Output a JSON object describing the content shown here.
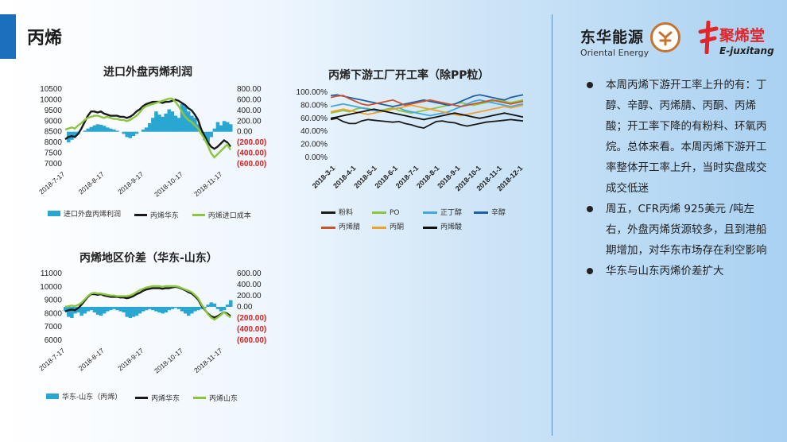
{
  "page": {
    "title": "丙烯"
  },
  "logos": {
    "oriental_cn": "东华能源",
    "oriental_en": "Oriental Energy",
    "juxitang_cn": "聚烯堂",
    "juxitang_en": "E-juxitang"
  },
  "bullets": [
    "本周丙烯下游开工率上升的有：丁醇、辛醇、丙烯腈、丙酮、丙烯酸；开工率下降的有粉料、环氧丙烷。总体来看。本周丙烯下游开工率整体开工率上升，当时实盘成交成交低迷",
    "周五，CFR丙烯 925美元 /吨左右，外盘丙烯货源较多，且到港船期增加，对华东市场存在利空影响",
    "华东与山东丙烯价差扩大"
  ],
  "colors": {
    "accent": "#1c6fbd",
    "area": "#2aa6d3",
    "black": "#1a1a1a",
    "green": "#8cc63f",
    "neg": "#e01b1b"
  },
  "chart_data": [
    {
      "type": "line",
      "title": "进口外盘丙烯利润",
      "x_ticks": [
        "2018-7-17",
        "2018-8-17",
        "2018-9-17",
        "2018-10-17",
        "2018-11-17"
      ],
      "y_left_ticks": [
        "10500",
        "10000",
        "9500",
        "9000",
        "8500",
        "8000",
        "7500",
        "7000"
      ],
      "y_left_range": [
        7000,
        10500
      ],
      "y_right_ticks": [
        "800.00",
        "600.00",
        "400.00",
        "200.00",
        "0.00",
        "(200.00)",
        "(400.00)",
        "(600.00)"
      ],
      "y_right_range": [
        -600,
        800
      ],
      "legend": [
        "进口外盘丙烯利润",
        "丙烯华东",
        "丙烯进口成本"
      ],
      "series": [
        {
          "name": "进口外盘丙烯利润",
          "axis": "right",
          "kind": "area",
          "values": [
            0,
            -200,
            -150,
            -80,
            -40,
            0,
            20,
            60,
            90,
            120,
            140,
            130,
            110,
            80,
            60,
            40,
            20,
            0,
            -40,
            -100,
            -120,
            -80,
            -40,
            0,
            40,
            80,
            160,
            260,
            380,
            320,
            280,
            340,
            420,
            380,
            300,
            260,
            520,
            480,
            380,
            300,
            260,
            140,
            -40,
            -160,
            -200,
            -100,
            60,
            180,
            120,
            200,
            180,
            140
          ]
        },
        {
          "name": "丙烯华东",
          "axis": "left",
          "kind": "line",
          "values": [
            8150,
            8250,
            8300,
            8250,
            8400,
            8650,
            8950,
            9250,
            9450,
            9450,
            9400,
            9450,
            9350,
            9300,
            9250,
            9250,
            9250,
            9200,
            9200,
            9150,
            9200,
            9300,
            9450,
            9550,
            9700,
            9800,
            9850,
            9900,
            9900,
            9900,
            9850,
            9900,
            9900,
            9950,
            10000,
            9950,
            9850,
            9750,
            9600,
            9500,
            9300,
            9050,
            8600,
            8300,
            8000,
            7800,
            7700,
            7800,
            7950,
            8100,
            8000,
            7800
          ]
        },
        {
          "name": "丙烯进口成本",
          "axis": "left",
          "kind": "line",
          "values": [
            8600,
            8650,
            8700,
            8650,
            8800,
            8900,
            9050,
            9150,
            9200,
            9250,
            9250,
            9200,
            9150,
            9200,
            9150,
            9100,
            9100,
            9050,
            9050,
            9000,
            9050,
            9150,
            9250,
            9400,
            9600,
            9700,
            9750,
            9800,
            9850,
            9900,
            9950,
            10000,
            10050,
            10050,
            9900,
            9700,
            9450,
            9200,
            9050,
            8950,
            8800,
            8650,
            8400,
            8150,
            7850,
            7500,
            7300,
            7450,
            7600,
            7750,
            7900,
            7650
          ]
        }
      ]
    },
    {
      "type": "line",
      "title": "丙烯下游工厂开工率（除PP粒）",
      "x_ticks": [
        "2018-3-1",
        "2018-4-1",
        "2018-5-1",
        "2018-6-1",
        "2018-7-1",
        "2018-8-1",
        "2018-9-1",
        "2018-10-1",
        "2018-11-1",
        "2018-12-1"
      ],
      "y_ticks": [
        "100.00%",
        "80.00%",
        "60.00%",
        "40.00%",
        "20.00%",
        "0.00%"
      ],
      "y_range": [
        0,
        100
      ],
      "legend": [
        "粉料",
        "PO",
        "正丁醇",
        "辛醇",
        "丙烯腈",
        "丙酮",
        "丙烯酸"
      ],
      "series": [
        {
          "name": "粉料",
          "color": "#1a1a1a",
          "values": [
            58,
            60,
            55,
            52,
            52,
            56,
            58,
            57,
            56,
            55,
            54,
            55,
            52,
            50,
            47,
            45,
            50,
            55,
            56,
            54,
            53,
            50,
            48,
            50,
            52,
            54,
            55,
            56,
            57,
            58,
            57,
            56
          ]
        },
        {
          "name": "PO",
          "color": "#8cc63f",
          "values": [
            68,
            70,
            72,
            70,
            74,
            76,
            75,
            73,
            72,
            74,
            76,
            72,
            70,
            68,
            70,
            72,
            74,
            76,
            78,
            80,
            82,
            84,
            82,
            80,
            82,
            84,
            86,
            88,
            86,
            84,
            86,
            88
          ]
        },
        {
          "name": "正丁醇",
          "color": "#3fa9dc",
          "values": [
            78,
            80,
            82,
            80,
            78,
            76,
            74,
            72,
            70,
            72,
            74,
            76,
            72,
            70,
            68,
            66,
            64,
            66,
            68,
            70,
            74,
            78,
            82,
            86,
            88,
            86,
            84,
            82,
            80,
            78,
            80,
            82
          ]
        },
        {
          "name": "辛醇",
          "color": "#1f5fa8",
          "values": [
            95,
            96,
            94,
            92,
            90,
            88,
            86,
            84,
            82,
            80,
            78,
            80,
            82,
            84,
            86,
            88,
            86,
            84,
            82,
            80,
            82,
            86,
            90,
            94,
            96,
            94,
            92,
            90,
            88,
            92,
            94,
            96
          ]
        },
        {
          "name": "丙烯腈",
          "color": "#c9542b",
          "values": [
            92,
            94,
            95,
            90,
            86,
            82,
            80,
            82,
            84,
            86,
            88,
            84,
            80,
            82,
            84,
            86,
            88,
            86,
            84,
            82,
            80,
            78,
            80,
            82,
            84,
            86,
            88,
            86,
            84,
            82,
            84,
            86
          ]
        },
        {
          "name": "丙酮",
          "color": "#f0a030",
          "values": [
            70,
            72,
            74,
            72,
            70,
            68,
            66,
            68,
            70,
            72,
            74,
            76,
            78,
            80,
            78,
            76,
            74,
            72,
            70,
            68,
            66,
            64,
            66,
            68,
            70,
            72,
            74,
            76,
            78,
            76,
            78,
            80
          ]
        },
        {
          "name": "丙烯酸",
          "color": "#111111",
          "values": [
            60,
            62,
            64,
            66,
            68,
            70,
            72,
            74,
            72,
            70,
            68,
            66,
            64,
            62,
            60,
            58,
            60,
            62,
            64,
            66,
            68,
            66,
            64,
            62,
            60,
            62,
            64,
            66,
            68,
            66,
            64,
            62
          ]
        }
      ]
    },
    {
      "type": "line",
      "title": "丙烯地区价差（华东-山东）",
      "x_ticks": [
        "2018-7-17",
        "2018-8-17",
        "2018-9-17",
        "2018-10-17",
        "2018-11-17"
      ],
      "y_left_ticks": [
        "11000",
        "10000",
        "9000",
        "8000",
        "7000",
        "6000"
      ],
      "y_left_range": [
        6000,
        11000
      ],
      "y_right_ticks": [
        "600.00",
        "400.00",
        "200.00",
        "0.00",
        "(200.00)",
        "(400.00)",
        "(600.00)"
      ],
      "y_right_range": [
        -600,
        600
      ],
      "legend": [
        "华东-山东（丙烯）",
        "丙烯华东",
        "丙烯山东"
      ],
      "series": [
        {
          "name": "华东-山东（丙烯）",
          "axis": "right",
          "kind": "area",
          "values": [
            -80,
            -180,
            -200,
            -120,
            -100,
            -160,
            -120,
            -80,
            -60,
            -100,
            -140,
            -160,
            -120,
            -80,
            -60,
            -40,
            -60,
            -80,
            -100,
            -180,
            -200,
            -180,
            -160,
            -120,
            -80,
            -60,
            -40,
            -60,
            -80,
            -100,
            -120,
            -100,
            -60,
            -40,
            -20,
            -40,
            -80,
            -120,
            -160,
            -120,
            -80,
            -60,
            -40,
            -20,
            40,
            80,
            60,
            -40,
            -80,
            -60,
            40,
            120
          ]
        },
        {
          "name": "丙烯华东",
          "axis": "left",
          "kind": "line",
          "values": [
            8150,
            8250,
            8300,
            8250,
            8400,
            8650,
            8950,
            9250,
            9450,
            9450,
            9400,
            9450,
            9350,
            9300,
            9250,
            9250,
            9250,
            9200,
            9200,
            9150,
            9200,
            9300,
            9450,
            9550,
            9700,
            9800,
            9850,
            9900,
            9900,
            9900,
            9850,
            9900,
            9900,
            9950,
            10000,
            9950,
            9850,
            9750,
            9600,
            9500,
            9300,
            9050,
            8600,
            8300,
            8000,
            7800,
            7700,
            7800,
            7950,
            8100,
            8000,
            7800
          ]
        },
        {
          "name": "丙烯山东",
          "axis": "left",
          "kind": "line",
          "values": [
            8500,
            8550,
            8600,
            8550,
            8650,
            8800,
            9050,
            9300,
            9500,
            9550,
            9500,
            9500,
            9450,
            9400,
            9350,
            9350,
            9300,
            9300,
            9300,
            9300,
            9350,
            9450,
            9600,
            9750,
            9850,
            9950,
            10000,
            10050,
            10050,
            10050,
            10000,
            10050,
            10050,
            10050,
            10050,
            10000,
            9900,
            9800,
            9700,
            9600,
            9400,
            9150,
            8700,
            8350,
            7950,
            7700,
            7550,
            7700,
            7900,
            8100,
            7900,
            7700
          ]
        }
      ]
    }
  ]
}
